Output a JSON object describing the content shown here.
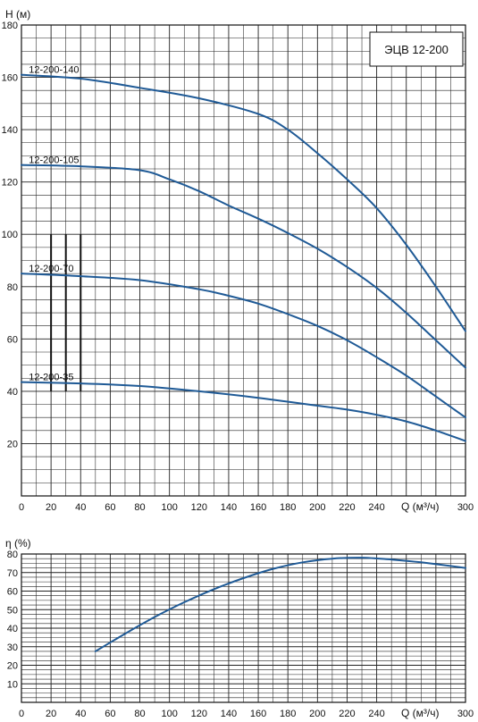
{
  "chart_data": [
    {
      "type": "line",
      "title": "ЭЦВ 12-200",
      "ylabel": "H (м)",
      "xlabel": "Q (м³/ч)",
      "xlim": [
        0,
        300
      ],
      "ylim": [
        0,
        180
      ],
      "x_ticks": [
        0,
        20,
        40,
        60,
        80,
        100,
        120,
        140,
        160,
        180,
        200,
        220,
        240,
        300
      ],
      "y_ticks": [
        20,
        40,
        60,
        80,
        100,
        120,
        140,
        160,
        180
      ],
      "grid": true,
      "line_color": "#1f5a96",
      "series": [
        {
          "name": "12-200-140",
          "x": [
            0,
            40,
            80,
            120,
            160,
            180,
            200,
            220,
            240,
            260,
            280,
            300
          ],
          "y": [
            161,
            159.5,
            156,
            152,
            146,
            140,
            131,
            121,
            110,
            96,
            80,
            63
          ]
        },
        {
          "name": "12-200-105",
          "x": [
            0,
            40,
            80,
            100,
            120,
            140,
            160,
            180,
            200,
            220,
            240,
            260,
            280,
            300
          ],
          "y": [
            126.5,
            126,
            124.5,
            121,
            116.5,
            111,
            106,
            100.5,
            94.5,
            87.5,
            79.5,
            70,
            59.5,
            49
          ]
        },
        {
          "name": "12-200-70",
          "x": [
            0,
            40,
            80,
            120,
            140,
            160,
            180,
            200,
            220,
            240,
            260,
            280,
            300
          ],
          "y": [
            85,
            84,
            82.5,
            79,
            76.5,
            73.5,
            69.5,
            65,
            59.5,
            53,
            46,
            38,
            30
          ]
        },
        {
          "name": "12-200-35",
          "x": [
            0,
            40,
            80,
            120,
            160,
            200,
            220,
            240,
            260,
            280,
            300
          ],
          "y": [
            43.5,
            43,
            42,
            40,
            37.5,
            34.5,
            33,
            31,
            28.5,
            25,
            21
          ]
        }
      ]
    },
    {
      "type": "line",
      "ylabel": "η (%)",
      "xlabel": "Q (м³/ч)",
      "xlim": [
        0,
        300
      ],
      "ylim": [
        0,
        80
      ],
      "x_ticks": [
        0,
        20,
        40,
        60,
        80,
        100,
        120,
        140,
        160,
        180,
        200,
        220,
        240,
        300
      ],
      "y_ticks": [
        10,
        20,
        30,
        40,
        50,
        60,
        70,
        80
      ],
      "grid": true,
      "line_color": "#1f5a96",
      "series": [
        {
          "x": [
            50,
            70,
            90,
            110,
            130,
            150,
            170,
            190,
            210,
            230,
            250,
            270,
            300
          ],
          "y": [
            27.5,
            37,
            46,
            54,
            61,
            67,
            72,
            75.5,
            77.5,
            78,
            77,
            75.5,
            72.5
          ]
        }
      ]
    }
  ]
}
